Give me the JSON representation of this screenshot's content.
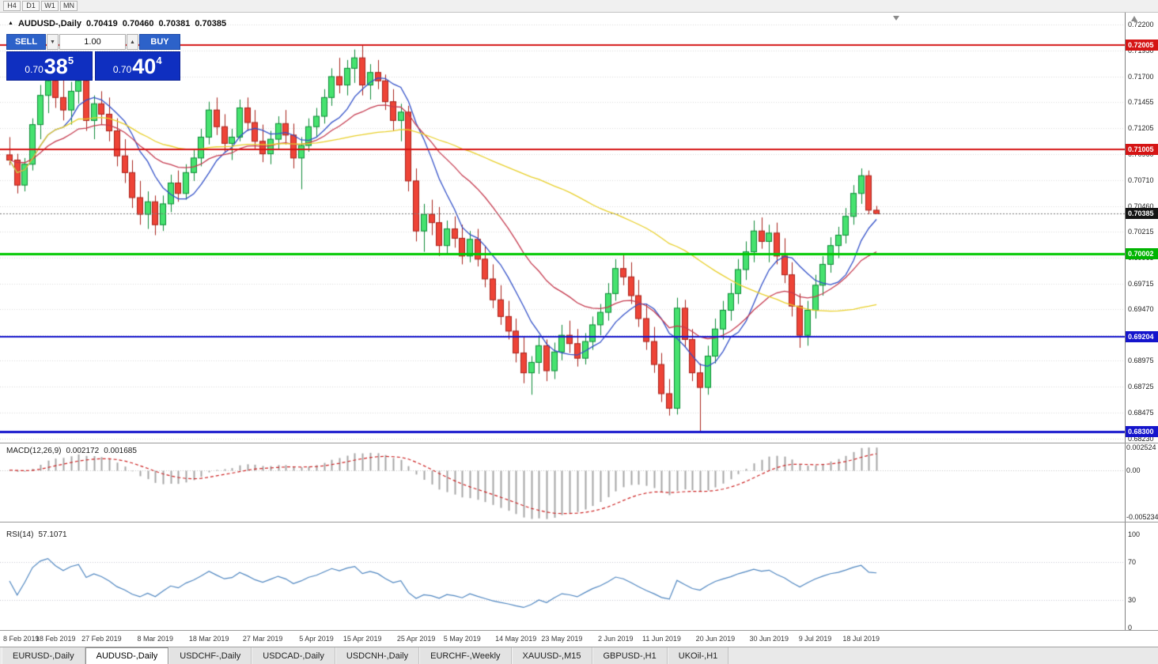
{
  "toolbar": {
    "timeframes": [
      "H4",
      "D1",
      "W1",
      "MN"
    ]
  },
  "chart_header": {
    "symbol_title": "AUDUSD-,Daily",
    "open": "0.70419",
    "high": "0.70460",
    "low": "0.70381",
    "close": "0.70385"
  },
  "trade_panel": {
    "sell_label": "SELL",
    "buy_label": "BUY",
    "volume": "1.00",
    "sell_price": {
      "prefix": "0.70",
      "big": "38",
      "sup": "5"
    },
    "buy_price": {
      "prefix": "0.70",
      "big": "40",
      "sup": "4"
    }
  },
  "price_axis": {
    "labels": [
      "0.72200",
      "0.71950",
      "0.71700",
      "0.71455",
      "0.71205",
      "0.70960",
      "0.70710",
      "0.70460",
      "0.70215",
      "0.69965",
      "0.69715",
      "0.69470",
      "0.69220",
      "0.68975",
      "0.68725",
      "0.68475",
      "0.68230"
    ],
    "badges": [
      {
        "value": "0.72005",
        "price": 0.72005,
        "color": "#d51414",
        "type": "resistance-1"
      },
      {
        "value": "0.71005",
        "price": 0.71005,
        "color": "#d51414",
        "type": "resistance-2"
      },
      {
        "value": "0.70385",
        "price": 0.70385,
        "color": "#141414",
        "type": "current-price"
      },
      {
        "value": "0.70002",
        "price": 0.70002,
        "color": "#00b400",
        "type": "support-1"
      },
      {
        "value": "0.69204",
        "price": 0.69204,
        "color": "#1515cc",
        "type": "support-2"
      },
      {
        "value": "0.68300",
        "price": 0.683,
        "color": "#1515cc",
        "type": "support-3"
      }
    ]
  },
  "indicators": {
    "macd": {
      "label": "MACD(12,26,9)",
      "main_value": "0.002172",
      "signal_value": "0.001685",
      "axis_labels": [
        {
          "text": "0.002524",
          "value": 0.002524
        },
        {
          "text": "0.00",
          "value": 0
        },
        {
          "text": "-0.005234",
          "value": -0.005234
        }
      ]
    },
    "rsi": {
      "label": "RSI(14)",
      "value": "57.1071",
      "axis_labels": [
        {
          "text": "100",
          "value": 100
        },
        {
          "text": "70",
          "value": 70
        },
        {
          "text": "30",
          "value": 30
        },
        {
          "text": "0",
          "value": 0
        }
      ]
    }
  },
  "date_axis": [
    {
      "label": "8 Feb 2019",
      "index": 0
    },
    {
      "label": "18 Feb 2019",
      "index": 6
    },
    {
      "label": "27 Feb 2019",
      "index": 12
    },
    {
      "label": "8 Mar 2019",
      "index": 19
    },
    {
      "label": "18 Mar 2019",
      "index": 26
    },
    {
      "label": "27 Mar 2019",
      "index": 33
    },
    {
      "label": "5 Apr 2019",
      "index": 40
    },
    {
      "label": "15 Apr 2019",
      "index": 46
    },
    {
      "label": "25 Apr 2019",
      "index": 53
    },
    {
      "label": "5 May 2019",
      "index": 59
    },
    {
      "label": "14 May 2019",
      "index": 66
    },
    {
      "label": "23 May 2019",
      "index": 72
    },
    {
      "label": "2 Jun 2019",
      "index": 79
    },
    {
      "label": "11 Jun 2019",
      "index": 85
    },
    {
      "label": "20 Jun 2019",
      "index": 92
    },
    {
      "label": "30 Jun 2019",
      "index": 99
    },
    {
      "label": "9 Jul 2019",
      "index": 105
    },
    {
      "label": "18 Jul 2019",
      "index": 111
    }
  ],
  "tabs": [
    {
      "label": "EURUSD-,Daily",
      "active": false
    },
    {
      "label": "AUDUSD-,Daily",
      "active": true
    },
    {
      "label": "USDCHF-,Daily",
      "active": false
    },
    {
      "label": "USDCAD-,Daily",
      "active": false
    },
    {
      "label": "USDCNH-,Daily",
      "active": false
    },
    {
      "label": "EURCHF-,Weekly",
      "active": false
    },
    {
      "label": "XAUUSD-,M15",
      "active": false
    },
    {
      "label": "GBPUSD-,H1",
      "active": false
    },
    {
      "label": "UKOil-,H1",
      "active": false
    }
  ],
  "chart_data": {
    "type": "candlestick",
    "symbol": "AUDUSD",
    "timeframe": "Daily",
    "visible_range_dates": [
      "8 Feb 2019",
      "18 Jul 2019"
    ],
    "price_range": [
      0.6819,
      0.7231
    ],
    "current_bid": 0.70385,
    "up_color": "#46e26f",
    "down_color": "#ee4437",
    "up_border": "#0c8a36",
    "down_border": "#a8221b",
    "horizontal_levels": [
      {
        "price": 0.72005,
        "color": "#d51414",
        "width": 2
      },
      {
        "price": 0.71005,
        "color": "#d51414",
        "width": 2
      },
      {
        "price": 0.70002,
        "color": "#00c800",
        "width": 3
      },
      {
        "price": 0.69204,
        "color": "#1515cc",
        "width": 2
      },
      {
        "price": 0.683,
        "color": "#1515cc",
        "width": 3
      }
    ],
    "ma_estimates": [
      {
        "period": 8,
        "method": "sma",
        "color": "#3250c8"
      },
      {
        "period": 20,
        "method": "ema",
        "color": "#c53a4e"
      },
      {
        "period": 50,
        "method": "sma",
        "color": "#e8cf2a"
      }
    ],
    "macd": {
      "fast": 12,
      "slow": 26,
      "signal": 9,
      "hist_color": "#a6a6a6",
      "signal_color": "#cc2222",
      "scale_max": 0.003,
      "scale_min": -0.0058
    },
    "rsi": {
      "period": 14,
      "color": "#4f86c0",
      "levels": [
        70,
        30
      ]
    },
    "candles": [
      [
        0.7095,
        0.7112,
        0.7085,
        0.709
      ],
      [
        0.709,
        0.7096,
        0.7058,
        0.7066
      ],
      [
        0.7066,
        0.7092,
        0.706,
        0.7086
      ],
      [
        0.7086,
        0.713,
        0.708,
        0.7124
      ],
      [
        0.7124,
        0.7162,
        0.711,
        0.7152
      ],
      [
        0.7152,
        0.7176,
        0.7135,
        0.7166
      ],
      [
        0.7166,
        0.7176,
        0.714,
        0.715
      ],
      [
        0.715,
        0.717,
        0.7128,
        0.7138
      ],
      [
        0.7138,
        0.7165,
        0.7124,
        0.7156
      ],
      [
        0.7156,
        0.7176,
        0.7144,
        0.7166
      ],
      [
        0.7166,
        0.7172,
        0.7118,
        0.7128
      ],
      [
        0.7128,
        0.7152,
        0.711,
        0.7144
      ],
      [
        0.7144,
        0.7156,
        0.7124,
        0.7134
      ],
      [
        0.7134,
        0.715,
        0.7108,
        0.7118
      ],
      [
        0.7118,
        0.713,
        0.7084,
        0.7094
      ],
      [
        0.7094,
        0.711,
        0.7068,
        0.7078
      ],
      [
        0.7078,
        0.709,
        0.7044,
        0.7054
      ],
      [
        0.7054,
        0.707,
        0.7028,
        0.7038
      ],
      [
        0.7038,
        0.706,
        0.7024,
        0.705
      ],
      [
        0.705,
        0.7056,
        0.7018,
        0.7028
      ],
      [
        0.7028,
        0.7056,
        0.7022,
        0.7048
      ],
      [
        0.7048,
        0.7076,
        0.704,
        0.7068
      ],
      [
        0.7068,
        0.708,
        0.705,
        0.7058
      ],
      [
        0.7058,
        0.7086,
        0.7052,
        0.7078
      ],
      [
        0.7078,
        0.71,
        0.707,
        0.7092
      ],
      [
        0.7092,
        0.712,
        0.7084,
        0.7112
      ],
      [
        0.7112,
        0.7146,
        0.7105,
        0.7138
      ],
      [
        0.7138,
        0.715,
        0.7114,
        0.7122
      ],
      [
        0.7122,
        0.7134,
        0.7098,
        0.7106
      ],
      [
        0.7106,
        0.712,
        0.709,
        0.7112
      ],
      [
        0.7112,
        0.7148,
        0.7108,
        0.714
      ],
      [
        0.714,
        0.715,
        0.7118,
        0.7126
      ],
      [
        0.7126,
        0.7138,
        0.71,
        0.7108
      ],
      [
        0.7108,
        0.7124,
        0.7088,
        0.7096
      ],
      [
        0.7096,
        0.7118,
        0.7086,
        0.711
      ],
      [
        0.711,
        0.7132,
        0.71,
        0.7125
      ],
      [
        0.7125,
        0.7138,
        0.7105,
        0.7114
      ],
      [
        0.7114,
        0.7125,
        0.7082,
        0.7092
      ],
      [
        0.7092,
        0.7112,
        0.7062,
        0.7104
      ],
      [
        0.7104,
        0.713,
        0.7098,
        0.7122
      ],
      [
        0.7122,
        0.714,
        0.7112,
        0.7132
      ],
      [
        0.7132,
        0.7158,
        0.7125,
        0.715
      ],
      [
        0.715,
        0.7178,
        0.7142,
        0.717
      ],
      [
        0.717,
        0.7188,
        0.7154,
        0.7162
      ],
      [
        0.7162,
        0.7186,
        0.7152,
        0.7178
      ],
      [
        0.7178,
        0.7196,
        0.7164,
        0.7188
      ],
      [
        0.7188,
        0.72,
        0.7152,
        0.7162
      ],
      [
        0.7162,
        0.7182,
        0.7148,
        0.7174
      ],
      [
        0.7174,
        0.7186,
        0.7158,
        0.7166
      ],
      [
        0.7166,
        0.7172,
        0.7138,
        0.7146
      ],
      [
        0.7146,
        0.7158,
        0.7118,
        0.7128
      ],
      [
        0.7128,
        0.7144,
        0.7108,
        0.7136
      ],
      [
        0.7136,
        0.7142,
        0.706,
        0.707
      ],
      [
        0.707,
        0.7082,
        0.7012,
        0.7022
      ],
      [
        0.7022,
        0.7048,
        0.7002,
        0.7038
      ],
      [
        0.7038,
        0.7052,
        0.7018,
        0.703
      ],
      [
        0.703,
        0.7045,
        0.6998,
        0.7008
      ],
      [
        0.7008,
        0.7032,
        0.7,
        0.7024
      ],
      [
        0.7024,
        0.7036,
        0.7006,
        0.7015
      ],
      [
        0.7015,
        0.7028,
        0.699,
        0.6998
      ],
      [
        0.6998,
        0.7022,
        0.6992,
        0.7014
      ],
      [
        0.7014,
        0.7024,
        0.6988,
        0.6995
      ],
      [
        0.6995,
        0.7008,
        0.6968,
        0.6976
      ],
      [
        0.6976,
        0.699,
        0.6948,
        0.6956
      ],
      [
        0.6956,
        0.697,
        0.6932,
        0.694
      ],
      [
        0.694,
        0.6955,
        0.6918,
        0.6926
      ],
      [
        0.6926,
        0.6938,
        0.6896,
        0.6905
      ],
      [
        0.6905,
        0.692,
        0.6876,
        0.6886
      ],
      [
        0.6886,
        0.6902,
        0.6865,
        0.6896
      ],
      [
        0.6896,
        0.6922,
        0.6885,
        0.6912
      ],
      [
        0.6912,
        0.6918,
        0.6878,
        0.6888
      ],
      [
        0.6888,
        0.6915,
        0.688,
        0.6906
      ],
      [
        0.6906,
        0.6932,
        0.6898,
        0.6922
      ],
      [
        0.6922,
        0.6936,
        0.6905,
        0.6914
      ],
      [
        0.6914,
        0.6928,
        0.6892,
        0.69
      ],
      [
        0.69,
        0.6924,
        0.6894,
        0.6916
      ],
      [
        0.6916,
        0.694,
        0.6908,
        0.6932
      ],
      [
        0.6932,
        0.6952,
        0.6922,
        0.6944
      ],
      [
        0.6944,
        0.6972,
        0.6936,
        0.6962
      ],
      [
        0.6962,
        0.6995,
        0.6955,
        0.6986
      ],
      [
        0.6986,
        0.7,
        0.697,
        0.6978
      ],
      [
        0.6978,
        0.6992,
        0.6952,
        0.696
      ],
      [
        0.696,
        0.6975,
        0.693,
        0.6938
      ],
      [
        0.6938,
        0.6952,
        0.6908,
        0.6916
      ],
      [
        0.6916,
        0.693,
        0.6886,
        0.6894
      ],
      [
        0.6894,
        0.6905,
        0.6858,
        0.6866
      ],
      [
        0.6866,
        0.688,
        0.6845,
        0.6852
      ],
      [
        0.6852,
        0.6958,
        0.6846,
        0.6948
      ],
      [
        0.6948,
        0.6956,
        0.691,
        0.6918
      ],
      [
        0.6918,
        0.6928,
        0.6878,
        0.6886
      ],
      [
        0.6886,
        0.6895,
        0.683,
        0.6872
      ],
      [
        0.6872,
        0.6912,
        0.6865,
        0.6902
      ],
      [
        0.6902,
        0.6938,
        0.6895,
        0.6928
      ],
      [
        0.6928,
        0.6955,
        0.6918,
        0.6946
      ],
      [
        0.6946,
        0.6972,
        0.6936,
        0.6962
      ],
      [
        0.6962,
        0.6995,
        0.6952,
        0.6985
      ],
      [
        0.6985,
        0.7012,
        0.6975,
        0.7002
      ],
      [
        0.7002,
        0.7032,
        0.6992,
        0.7022
      ],
      [
        0.7022,
        0.7035,
        0.7005,
        0.7012
      ],
      [
        0.7012,
        0.7028,
        0.6992,
        0.702
      ],
      [
        0.702,
        0.703,
        0.699,
        0.6998
      ],
      [
        0.6998,
        0.7015,
        0.6972,
        0.698
      ],
      [
        0.698,
        0.6992,
        0.694,
        0.695
      ],
      [
        0.695,
        0.6962,
        0.691,
        0.6922
      ],
      [
        0.6922,
        0.6955,
        0.6912,
        0.6946
      ],
      [
        0.6946,
        0.698,
        0.6938,
        0.697
      ],
      [
        0.697,
        0.6998,
        0.696,
        0.699
      ],
      [
        0.699,
        0.7016,
        0.6982,
        0.7008
      ],
      [
        0.7008,
        0.7026,
        0.6996,
        0.7018
      ],
      [
        0.7018,
        0.7044,
        0.701,
        0.7036
      ],
      [
        0.7036,
        0.7066,
        0.7028,
        0.7058
      ],
      [
        0.7058,
        0.7082,
        0.7048,
        0.7075
      ],
      [
        0.7075,
        0.708,
        0.7038,
        0.7042
      ],
      [
        0.70419,
        0.7046,
        0.70381,
        0.70385
      ]
    ]
  }
}
